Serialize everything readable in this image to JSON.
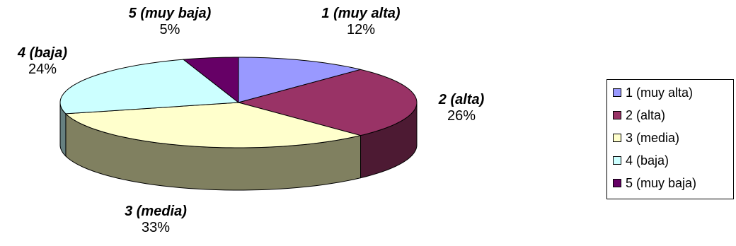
{
  "chart_data": {
    "type": "pie",
    "title": "",
    "categories": [
      "1 (muy alta)",
      "2 (alta)",
      "3 (media)",
      "4 (baja)",
      "5 (muy baja)"
    ],
    "values": [
      12,
      26,
      33,
      24,
      5
    ],
    "value_labels": [
      "12%",
      "26%",
      "33%",
      "24%",
      "5%"
    ],
    "colors": [
      "#9999ff",
      "#993366",
      "#ffffcc",
      "#ccffff",
      "#660066"
    ],
    "side_colors": [
      "#666699",
      "#4d1a33",
      "#808060",
      "#668080",
      "#330033"
    ],
    "style": "3d",
    "legend": "right"
  },
  "legend": {
    "items": [
      "1 (muy alta)",
      "2 (alta)",
      "3 (media)",
      "4 (baja)",
      "5 (muy baja)"
    ]
  }
}
